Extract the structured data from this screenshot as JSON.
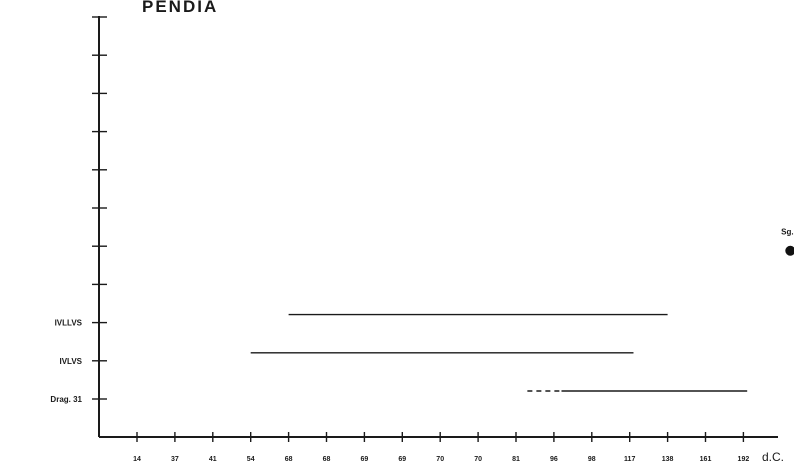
{
  "chart_data": {
    "type": "range",
    "title": "PENDIA",
    "xlabel": "",
    "x_unit": "d.C.",
    "x_ticks": [
      "14",
      "37",
      "41",
      "54",
      "68",
      "68",
      "69",
      "69",
      "70",
      "70",
      "81",
      "96",
      "98",
      "117",
      "138",
      "161",
      "192"
    ],
    "y_categories": [
      "Drag. 31",
      "IVLVS",
      "IVLLVS"
    ],
    "empty_levels_above": 8,
    "series": [
      {
        "label": "Drag. 31",
        "start_tick": 10.3,
        "end_tick": 16.1,
        "dashed_prefix_ticks": 0.9
      },
      {
        "label": "IVLVS",
        "start_tick": 3.0,
        "end_tick": 13.1,
        "dashed_prefix_ticks": 0
      },
      {
        "label": "IVLLVS",
        "start_tick": 4.0,
        "end_tick": 14.0,
        "dashed_prefix_ticks": 0
      }
    ],
    "annotations": [
      {
        "text": "Sg. PI",
        "tick_position": 17.0,
        "level": 4.3,
        "marker": "dot"
      }
    ],
    "grid": false,
    "legend": "none"
  }
}
